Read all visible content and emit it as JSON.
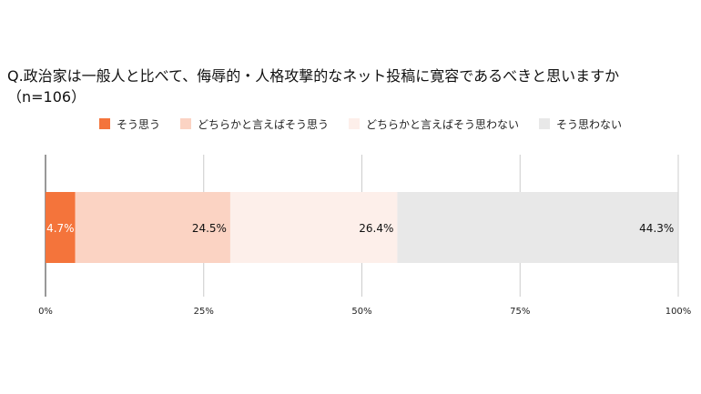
{
  "title_line1": "Q.政治家は一般人と比べて、侮辱的・人格攻撃的なネット投稿に寛容であるべきと思いますか",
  "title_line2": "（n=106）",
  "chart_data": {
    "type": "bar",
    "orientation": "horizontal",
    "stacked": true,
    "title": "Q.政治家は一般人と比べて、侮辱的・人格攻撃的なネット投稿に寛容であるべきと思いますか（n=106）",
    "categories": [
      ""
    ],
    "series": [
      {
        "name": "そう思う",
        "values": [
          4.7
        ],
        "label": "4.7%",
        "color": "#f4743b",
        "label_color": "#ffffff"
      },
      {
        "name": "どちらかと言えばそう思う",
        "values": [
          24.5
        ],
        "label": "24.5%",
        "color": "#fbd3c3",
        "label_color": "#111111"
      },
      {
        "name": "どちらかと言えばそう思わない",
        "values": [
          26.4
        ],
        "label": "26.4%",
        "color": "#fdefea",
        "label_color": "#111111"
      },
      {
        "name": "そう思わない",
        "values": [
          44.3
        ],
        "label": "44.3%",
        "color": "#e8e8e8",
        "label_color": "#111111"
      }
    ],
    "xlim": [
      0,
      100
    ],
    "xticks": [
      0,
      25,
      50,
      75,
      100
    ],
    "xtick_labels": [
      "0%",
      "25%",
      "50%",
      "75%",
      "100%"
    ],
    "grid": true,
    "legend_position": "top"
  }
}
